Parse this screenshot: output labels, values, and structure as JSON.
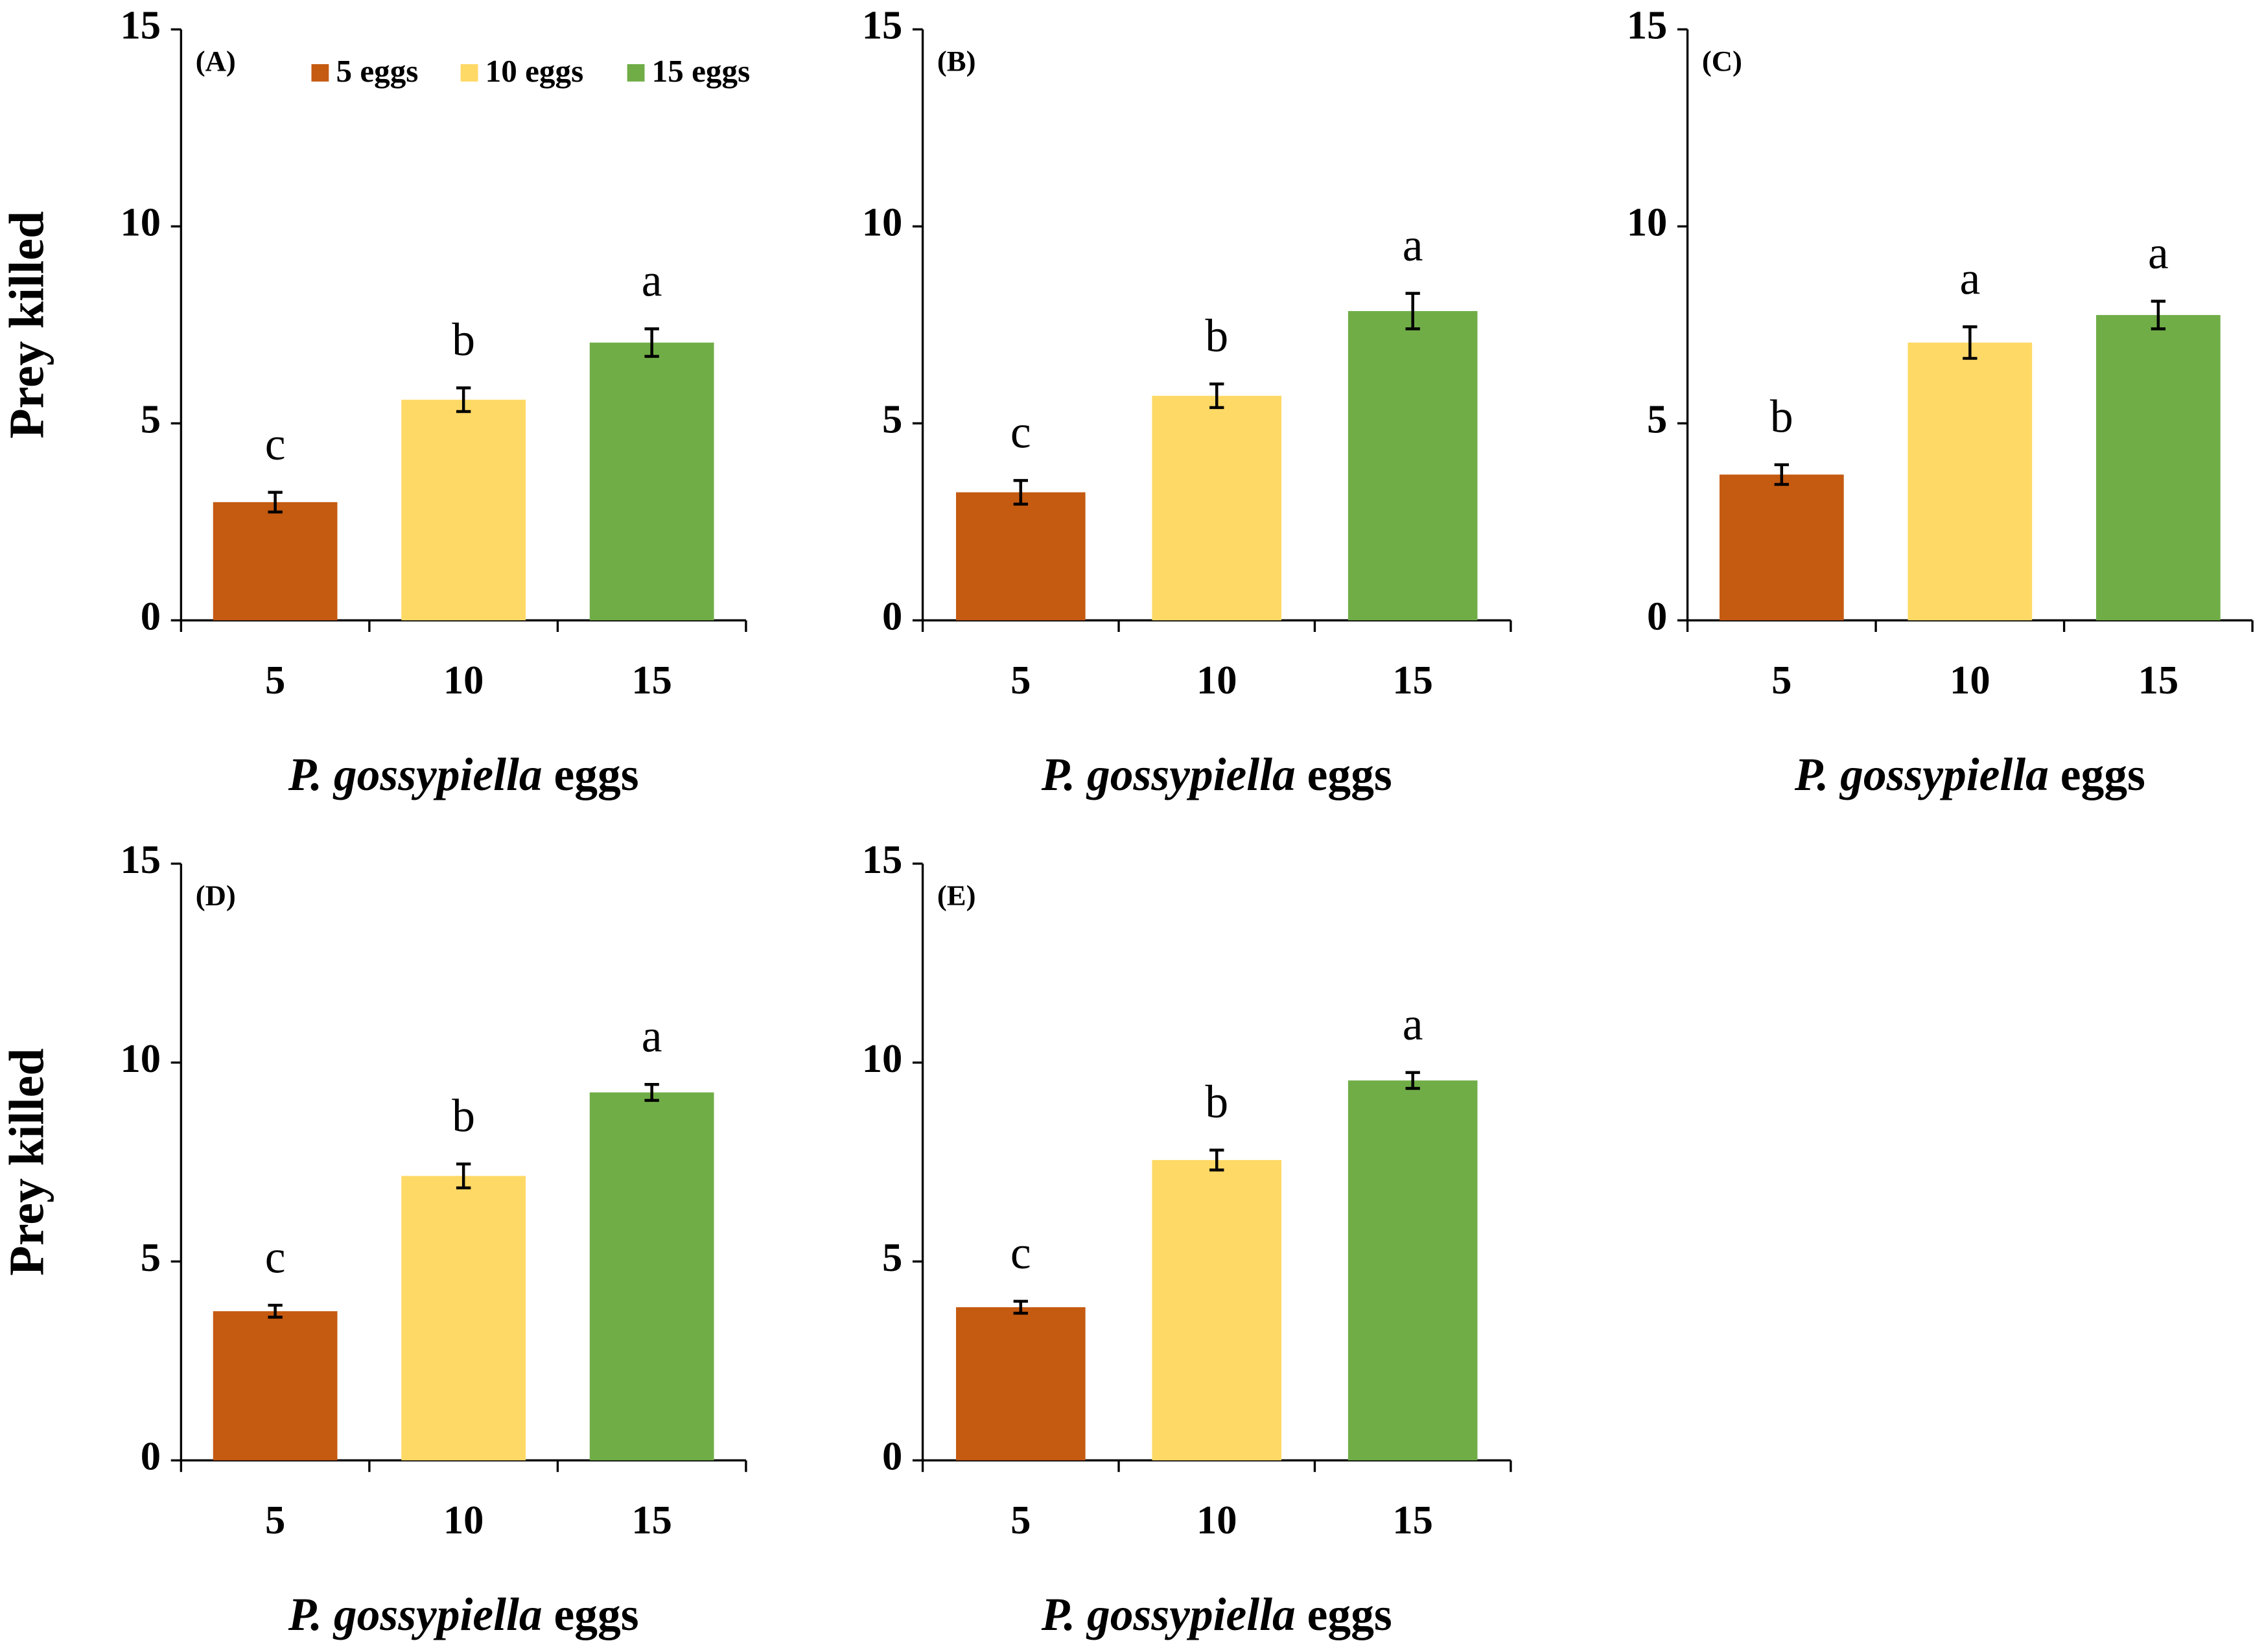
{
  "chart_data": [
    {
      "type": "bar",
      "panel": "(A)",
      "ylabel": "Prey killed",
      "xlabel_species": "P. gossypiella",
      "xlabel_unit": "eggs",
      "categories": [
        "5",
        "10",
        "15"
      ],
      "values": [
        3.0,
        5.6,
        7.05
      ],
      "errors": [
        0.25,
        0.3,
        0.35
      ],
      "letters": [
        "c",
        "b",
        "a"
      ],
      "colors": [
        "#c55a11",
        "#ffd966",
        "#70ad47"
      ],
      "legend": [
        "5 eggs",
        "10 eggs",
        "15 eggs"
      ],
      "ylim": [
        0,
        15
      ],
      "yticks": [
        0,
        5,
        10,
        15
      ]
    },
    {
      "type": "bar",
      "panel": "(B)",
      "xlabel_species": "P. gossypiella",
      "xlabel_unit": "eggs",
      "categories": [
        "5",
        "10",
        "15"
      ],
      "values": [
        3.25,
        5.7,
        7.85
      ],
      "errors": [
        0.3,
        0.3,
        0.45
      ],
      "letters": [
        "c",
        "b",
        "a"
      ],
      "colors": [
        "#c55a11",
        "#ffd966",
        "#70ad47"
      ],
      "ylim": [
        0,
        15
      ],
      "yticks": [
        0,
        5,
        10,
        15
      ]
    },
    {
      "type": "bar",
      "panel": "(C)",
      "xlabel_species": "P. gossypiella",
      "xlabel_unit": "eggs",
      "categories": [
        "5",
        "10",
        "15"
      ],
      "values": [
        3.7,
        7.05,
        7.75
      ],
      "errors": [
        0.25,
        0.4,
        0.35
      ],
      "letters": [
        "b",
        "a",
        "a"
      ],
      "colors": [
        "#c55a11",
        "#ffd966",
        "#70ad47"
      ],
      "ylim": [
        0,
        15
      ],
      "yticks": [
        0,
        5,
        10,
        15
      ]
    },
    {
      "type": "bar",
      "panel": "(D)",
      "ylabel": "Prey killed",
      "xlabel_species": "P. gossypiella",
      "xlabel_unit": "eggs",
      "categories": [
        "5",
        "10",
        "15"
      ],
      "values": [
        3.75,
        7.15,
        9.25
      ],
      "errors": [
        0.15,
        0.3,
        0.2
      ],
      "letters": [
        "c",
        "b",
        "a"
      ],
      "colors": [
        "#c55a11",
        "#ffd966",
        "#70ad47"
      ],
      "ylim": [
        0,
        15
      ],
      "yticks": [
        0,
        5,
        10,
        15
      ]
    },
    {
      "type": "bar",
      "panel": "(E)",
      "xlabel_species": "P. gossypiella",
      "xlabel_unit": "eggs",
      "categories": [
        "5",
        "10",
        "15"
      ],
      "values": [
        3.85,
        7.55,
        9.55
      ],
      "errors": [
        0.15,
        0.25,
        0.2
      ],
      "letters": [
        "c",
        "b",
        "a"
      ],
      "colors": [
        "#c55a11",
        "#ffd966",
        "#70ad47"
      ],
      "ylim": [
        0,
        15
      ],
      "yticks": [
        0,
        5,
        10,
        15
      ]
    }
  ]
}
